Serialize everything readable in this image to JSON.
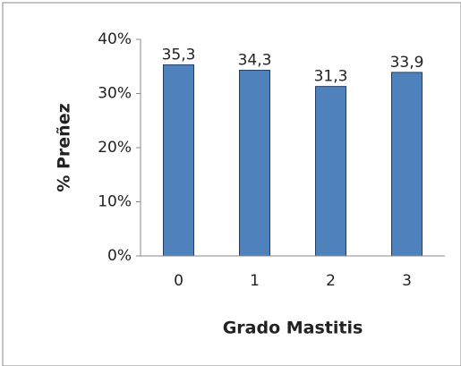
{
  "chart_data": {
    "type": "bar",
    "x_label": "Grado Mastitis",
    "y_label": "% Preñez",
    "categories": [
      "0",
      "1",
      "2",
      "3"
    ],
    "values": [
      35.3,
      34.3,
      31.3,
      33.9
    ],
    "value_labels": [
      "35,3",
      "34,3",
      "31,3",
      "33,9"
    ],
    "color": "#4f81bd",
    "ylim": [
      0,
      40
    ],
    "yticks": [
      {
        "value": 0,
        "label": "0%"
      },
      {
        "value": 10,
        "label": "10%"
      },
      {
        "value": 20,
        "label": "20%"
      },
      {
        "value": 30,
        "label": "30%"
      },
      {
        "value": 40,
        "label": "40%"
      }
    ],
    "grid": false
  }
}
